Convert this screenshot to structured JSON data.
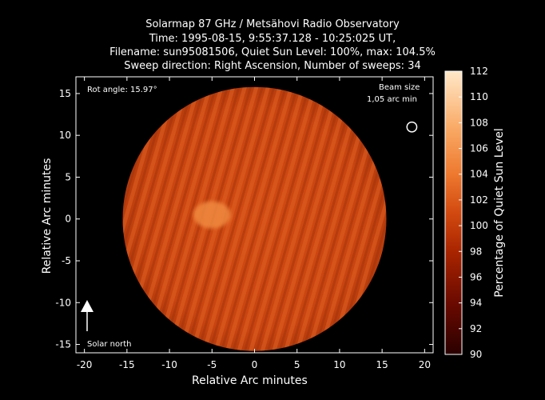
{
  "title_lines": [
    "Solarmap 87 GHz / Metsähovi Radio Observatory",
    "Time: 1995-08-15,  9:55:37.128 - 10:25:025 UT,",
    "Filename: sun95081506, Quiet Sun Level: 100%, max: 104.5%",
    "Sweep direction: Right Ascension, Number of sweeps: 34"
  ],
  "annotations": {
    "rot_angle": "Rot angle: 15.97°",
    "beam_size_line1": "Beam size",
    "beam_size_line2": "1,05 arc min",
    "solar_north": "Solar north"
  },
  "colors": {
    "background": "#000000",
    "colormap_low": "#2a0000",
    "colormap_mid": "#d24a10",
    "colormap_high": "#ffe8c8"
  },
  "chart_data": {
    "type": "heatmap",
    "xlabel": "Relative Arc minutes",
    "ylabel": "Relative Arc minutes",
    "xlim": [
      -21,
      21
    ],
    "ylim": [
      -16,
      17
    ],
    "xticks": [
      -20,
      -15,
      -10,
      -5,
      0,
      5,
      10,
      15,
      20
    ],
    "yticks": [
      -15,
      -10,
      -5,
      0,
      5,
      10,
      15
    ],
    "disk": {
      "center": [
        0,
        0
      ],
      "radius_arcmin": 15.5
    },
    "beam": {
      "center": [
        18.5,
        11
      ],
      "diameter_arcmin": 1.05
    },
    "features": [
      {
        "name": "bright region",
        "x": -5,
        "y": 0.5,
        "value": 104.5
      }
    ],
    "colorbar": {
      "label": "Percentage of Quiet Sun Level",
      "min": 90,
      "max": 112,
      "ticks": [
        90,
        92,
        94,
        96,
        98,
        100,
        102,
        104,
        106,
        108,
        110,
        112
      ]
    }
  }
}
